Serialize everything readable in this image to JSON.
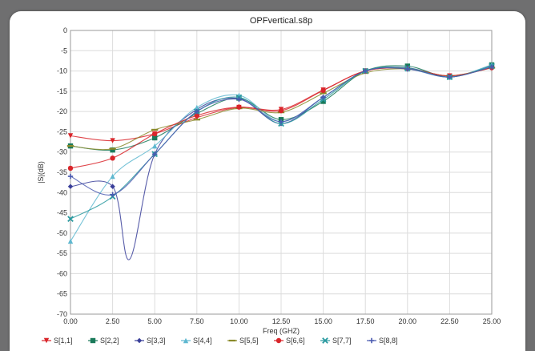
{
  "chart_data": {
    "type": "line",
    "title": "OPFvertical.s8p",
    "xlabel": "Freq (GHZ)",
    "ylabel": "|S|(dB)",
    "xlim": [
      0,
      25
    ],
    "ylim": [
      -70,
      0
    ],
    "xticks": [
      "0.00",
      "2.50",
      "5.00",
      "7.50",
      "10.00",
      "12.50",
      "15.00",
      "17.50",
      "20.00",
      "22.50",
      "25.00"
    ],
    "yticks": [
      "0",
      "-5",
      "-10",
      "-15",
      "-20",
      "-25",
      "-30",
      "-35",
      "-40",
      "-45",
      "-50",
      "-55",
      "-60",
      "-65",
      "-70"
    ],
    "grid": true,
    "legend_position": "bottom",
    "x": [
      0,
      2.5,
      5,
      7.5,
      10,
      12.5,
      15,
      17.5,
      20,
      22.5,
      25
    ],
    "series": [
      {
        "name": "S[1,1]",
        "color": "#d9252a",
        "marker": "triangle-down",
        "values": [
          -26,
          -27.2,
          -25.5,
          -21.5,
          -19,
          -19.5,
          -14.7,
          -10,
          -9.4,
          -11.2,
          -9.2
        ]
      },
      {
        "name": "S[2,2]",
        "color": "#1a7a5a",
        "marker": "square",
        "values": [
          -28.5,
          -29.5,
          -26.5,
          -20.5,
          -16.7,
          -22,
          -17.5,
          -10,
          -8.8,
          -11.5,
          -8.5
        ]
      },
      {
        "name": "S[3,3]",
        "color": "#3a3f9a",
        "marker": "diamond",
        "values": [
          -38.5,
          -38.5,
          -30.5,
          -19.5,
          -16.8,
          -23,
          -16.5,
          -10,
          -9.2,
          -11.5,
          -8.7
        ]
      },
      {
        "name": "S[4,4]",
        "color": "#5fb8d0",
        "marker": "triangle-up",
        "values": [
          -52,
          -36,
          -28.5,
          -19,
          -16,
          -22.5,
          -16.5,
          -10,
          -9.5,
          -11.5,
          -8.5
        ]
      },
      {
        "name": "S[5,5]",
        "color": "#8a8a2a",
        "marker": "dash",
        "values": [
          -28.5,
          -29.2,
          -24.5,
          -22,
          -19.2,
          -20.2,
          -15.5,
          -10.5,
          -9.5,
          -11.2,
          -9.2
        ]
      },
      {
        "name": "S[6,6]",
        "color": "#d9252a",
        "marker": "circle",
        "values": [
          -34,
          -31.5,
          -25.5,
          -21,
          -18.9,
          -19.8,
          -14.8,
          -10,
          -9.4,
          -11.2,
          -9.2
        ]
      },
      {
        "name": "S[7,7]",
        "color": "#2a9aa0",
        "marker": "x",
        "values": [
          -46.5,
          -41,
          -30.5,
          -20,
          -16.5,
          -23,
          -17,
          -10,
          -9.3,
          -11.5,
          -8.8
        ]
      },
      {
        "name": "S[8,8]",
        "color": "#4a5ab0",
        "marker": "plus",
        "values": [
          -36,
          -40.5,
          -30.5,
          -20,
          -17,
          -22.5,
          -16.5,
          -10,
          -9.5,
          -11.5,
          -9
        ]
      }
    ],
    "annotations": [
      {
        "series": "S[3,3]",
        "feature": "resonance dip",
        "x": 3.5,
        "y": -56.5
      }
    ]
  }
}
